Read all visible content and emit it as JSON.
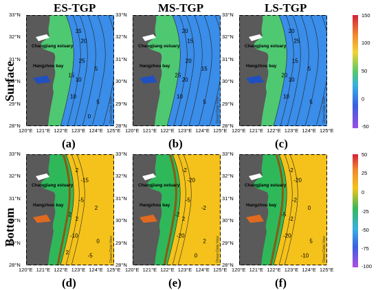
{
  "columns": [
    "ES-TGP",
    "MS-TGP",
    "LS-TGP"
  ],
  "rows": [
    "Surface",
    "Bottom"
  ],
  "panel_labels": [
    "(a)",
    "(b)",
    "(c)",
    "(d)",
    "(e)",
    "(f)"
  ],
  "lat_ticks": [
    "33°N",
    "32°N",
    "31°N",
    "30°N",
    "29°N",
    "28°N"
  ],
  "lon_ticks": [
    "120°E",
    "121°E",
    "122°E",
    "123°E",
    "124°E",
    "125°E"
  ],
  "map_labels": {
    "estuary": "Changjiang estuary",
    "bay": "Hangzhou bay"
  },
  "watermark": "Ocean Data View",
  "surface_colorbar": {
    "ticks": [
      "150",
      "100",
      "50",
      "0",
      "-50"
    ]
  },
  "bottom_colorbar": {
    "ticks": [
      "50",
      "25",
      "0",
      "-25",
      "-50",
      "-75",
      "-100"
    ]
  },
  "surface_contours": {
    "a": [
      "15",
      "20",
      "25",
      "15",
      "10",
      "5",
      "10",
      "5",
      "0"
    ],
    "b": [
      "20",
      "15",
      "20",
      "25",
      "20",
      "15",
      "10",
      "5"
    ],
    "c": [
      "20",
      "25",
      "15",
      "20",
      "10",
      "5",
      "10",
      "5"
    ]
  },
  "bottom_contours": {
    "d": [
      "2",
      "-15",
      "-5",
      "2",
      "2",
      "2",
      "-10",
      "0",
      "-5",
      "2"
    ],
    "e": [
      "-2",
      "-20",
      "-5",
      "-2",
      "2",
      "-2",
      "-20",
      "2",
      "0"
    ],
    "f": [
      "-2",
      "-20",
      "-2",
      "-5",
      "-2",
      "0",
      "-20",
      "5",
      "-10"
    ]
  },
  "colors": {
    "land": "#5a5a5a",
    "surface_sea": "#3a8de8",
    "surface_coast": "#4fc872",
    "bottom_sea": "#f4c21a",
    "bottom_coast": "#2fb85a"
  }
}
